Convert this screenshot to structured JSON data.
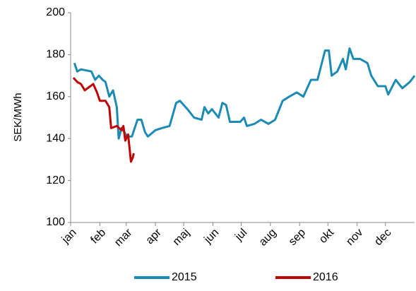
{
  "chart_data": {
    "type": "line",
    "y_label": "SEK/MWh",
    "xlim": [
      0,
      365
    ],
    "xticks": [
      {
        "value": 0,
        "label": "jan"
      },
      {
        "value": 31,
        "label": "feb"
      },
      {
        "value": 59,
        "label": "mar"
      },
      {
        "value": 90,
        "label": "apr"
      },
      {
        "value": 120,
        "label": "maj"
      },
      {
        "value": 151,
        "label": "jun"
      },
      {
        "value": 181,
        "label": "jul"
      },
      {
        "value": 212,
        "label": "aug"
      },
      {
        "value": 243,
        "label": "sep"
      },
      {
        "value": 273,
        "label": "okt"
      },
      {
        "value": 304,
        "label": "nov"
      },
      {
        "value": 334,
        "label": "dec"
      }
    ],
    "ylim": [
      100,
      200
    ],
    "yticks": [
      100,
      120,
      140,
      160,
      180,
      200
    ],
    "series": [
      {
        "name": "2015",
        "color": "#1b8bb4",
        "x": [
          4,
          7,
          11,
          22,
          26,
          30,
          34,
          37,
          41,
          45,
          49,
          51,
          54,
          60,
          65,
          71,
          75,
          79,
          82,
          90,
          97,
          105,
          112,
          116,
          124,
          131,
          139,
          142,
          146,
          150,
          157,
          161,
          165,
          169,
          180,
          184,
          187,
          195,
          202,
          210,
          217,
          225,
          232,
          240,
          247,
          255,
          262,
          266,
          270,
          274,
          277,
          283,
          289,
          292,
          296,
          300,
          307,
          315,
          319,
          326,
          334,
          337,
          345,
          352,
          360,
          365
        ],
        "values": [
          176,
          172,
          173,
          172,
          168,
          170,
          168,
          167,
          160,
          163,
          155,
          140,
          145,
          141,
          141,
          149,
          149,
          143,
          141,
          144,
          145,
          146,
          157,
          158,
          154,
          150,
          149,
          155,
          152,
          154,
          150,
          157,
          156,
          148,
          148,
          150,
          146,
          147,
          149,
          147,
          149,
          158,
          160,
          162,
          160,
          168,
          168,
          175,
          182,
          182,
          170,
          172,
          178,
          173,
          183,
          178,
          178,
          176,
          170,
          165,
          165,
          161,
          168,
          164,
          167,
          170
        ]
      },
      {
        "name": "2016",
        "color": "#c00000",
        "x": [
          3,
          7,
          11,
          15,
          21,
          24,
          28,
          31,
          37,
          41,
          43,
          49,
          54,
          56,
          58,
          61,
          64,
          66,
          67
        ],
        "values": [
          169,
          167,
          166,
          163,
          165,
          166,
          162,
          158,
          158,
          155,
          145,
          146,
          144,
          146,
          139,
          142,
          129,
          131,
          133
        ]
      }
    ]
  }
}
